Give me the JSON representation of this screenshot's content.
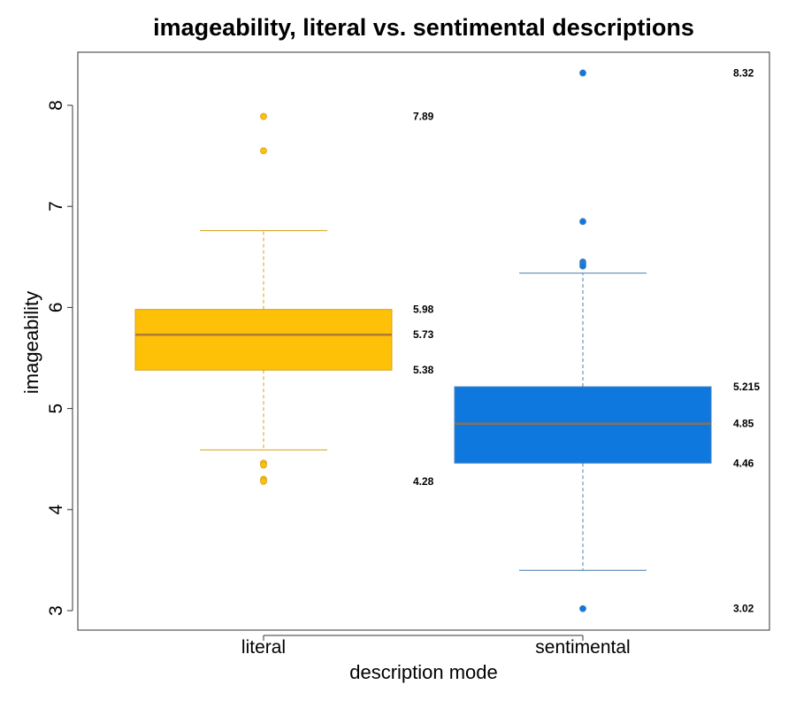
{
  "chart_data": {
    "type": "box",
    "title": "imageability, literal vs. sentimental descriptions",
    "xlabel": "description mode",
    "ylabel": "imageability",
    "ylim": [
      2.85,
      8.55
    ],
    "yticks": [
      "3",
      "4",
      "5",
      "6",
      "7",
      "8"
    ],
    "grid": false,
    "categories": [
      "literal",
      "sentimental"
    ],
    "boxes": [
      {
        "category": "literal",
        "color": "#FFC107",
        "border_color": "#D4A017",
        "q1": 5.38,
        "median": 5.73,
        "q3": 5.98,
        "whisker_low": 4.59,
        "whisker_high": 6.76,
        "outliers": [
          7.89,
          7.55,
          4.46,
          4.44,
          4.3,
          4.28
        ],
        "annotations": [
          {
            "value": 7.89,
            "text": "7.89"
          },
          {
            "value": 5.98,
            "text": "5.98"
          },
          {
            "value": 5.73,
            "text": "5.73"
          },
          {
            "value": 5.38,
            "text": "5.38"
          },
          {
            "value": 4.28,
            "text": "4.28"
          }
        ]
      },
      {
        "category": "sentimental",
        "color": "#0F78DF",
        "border_color": "#4A7FB0",
        "q1": 4.46,
        "median": 4.85,
        "q3": 5.215,
        "whisker_low": 3.4,
        "whisker_high": 6.34,
        "outliers": [
          8.32,
          6.85,
          6.45,
          6.43,
          6.41,
          3.02
        ],
        "annotations": [
          {
            "value": 8.32,
            "text": "8.32"
          },
          {
            "value": 5.215,
            "text": "5.215"
          },
          {
            "value": 4.85,
            "text": "4.85"
          },
          {
            "value": 4.46,
            "text": "4.46"
          },
          {
            "value": 3.02,
            "text": "3.02"
          }
        ]
      }
    ]
  }
}
